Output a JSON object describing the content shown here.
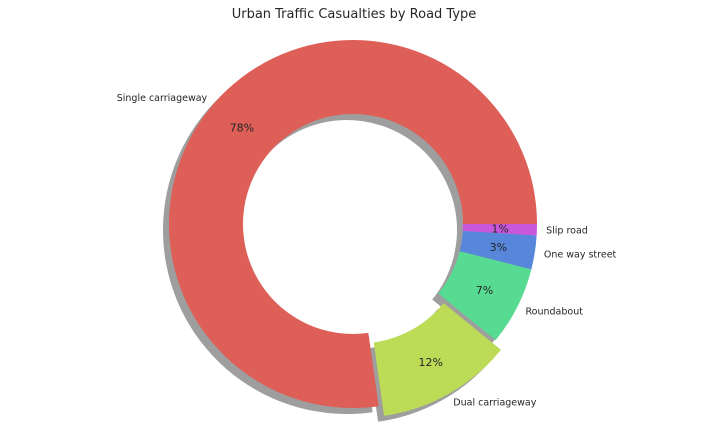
{
  "chart_data": {
    "type": "pie",
    "style": "donut",
    "title": "Urban Traffic Casualties by Road Type",
    "categories": [
      "Single carriageway",
      "Dual carriageway",
      "Roundabout",
      "One way street",
      "Slip road"
    ],
    "values": [
      78,
      12,
      7,
      3,
      1
    ],
    "percent_labels": [
      "78%",
      "12%",
      "7%",
      "3%",
      "1%"
    ],
    "colors": [
      "#dd5f57",
      "#bcdb57",
      "#57db93",
      "#5786db",
      "#c957db"
    ],
    "exploded": [
      false,
      true,
      false,
      false,
      false
    ],
    "shadow": true,
    "legend": "none"
  }
}
